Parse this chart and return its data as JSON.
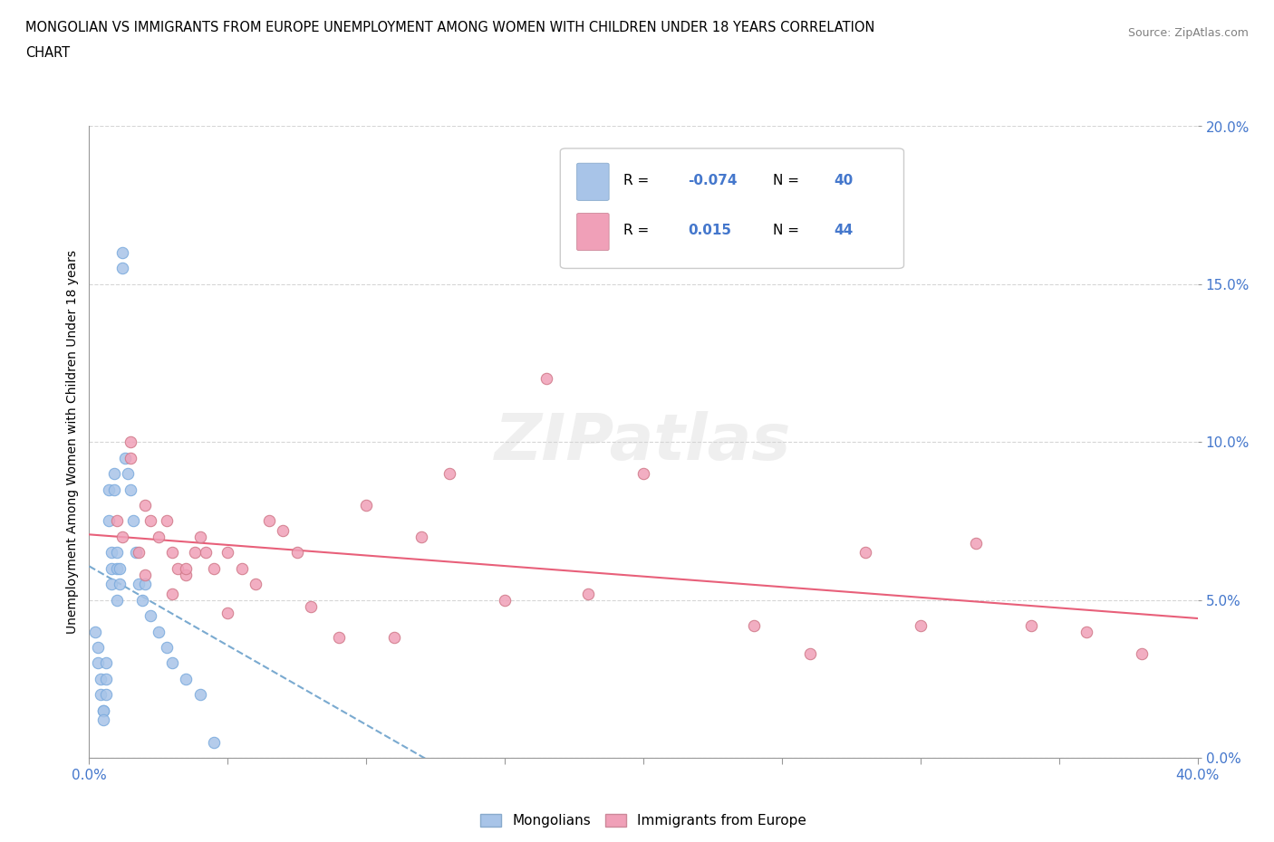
{
  "title_line1": "MONGOLIAN VS IMMIGRANTS FROM EUROPE UNEMPLOYMENT AMONG WOMEN WITH CHILDREN UNDER 18 YEARS CORRELATION",
  "title_line2": "CHART",
  "source": "Source: ZipAtlas.com",
  "ylabel_label": "Unemployment Among Women with Children Under 18 years",
  "xlim": [
    0.0,
    0.4
  ],
  "ylim": [
    0.0,
    0.2
  ],
  "xtick_positions": [
    0.0,
    0.05,
    0.1,
    0.15,
    0.2,
    0.25,
    0.3,
    0.35,
    0.4
  ],
  "ytick_positions": [
    0.0,
    0.05,
    0.1,
    0.15,
    0.2
  ],
  "watermark_text": "ZIPatlas",
  "legend_label1": "Mongolians",
  "legend_label2": "Immigrants from Europe",
  "R1": -0.074,
  "N1": 40,
  "R2": 0.015,
  "N2": 44,
  "color_mongolian": "#a8c4e8",
  "color_europe": "#f0a0b8",
  "trendline1_color": "#7aaad0",
  "trendline2_color": "#e8607a",
  "tick_color": "#4477cc",
  "mongolian_x": [
    0.002,
    0.003,
    0.003,
    0.004,
    0.004,
    0.005,
    0.005,
    0.005,
    0.006,
    0.006,
    0.006,
    0.007,
    0.007,
    0.008,
    0.008,
    0.008,
    0.009,
    0.009,
    0.01,
    0.01,
    0.01,
    0.011,
    0.011,
    0.012,
    0.012,
    0.013,
    0.014,
    0.015,
    0.016,
    0.017,
    0.018,
    0.019,
    0.02,
    0.022,
    0.025,
    0.028,
    0.03,
    0.035,
    0.04,
    0.045
  ],
  "mongolian_y": [
    0.04,
    0.035,
    0.03,
    0.025,
    0.02,
    0.015,
    0.015,
    0.012,
    0.03,
    0.025,
    0.02,
    0.075,
    0.085,
    0.065,
    0.06,
    0.055,
    0.09,
    0.085,
    0.065,
    0.06,
    0.05,
    0.06,
    0.055,
    0.155,
    0.16,
    0.095,
    0.09,
    0.085,
    0.075,
    0.065,
    0.055,
    0.05,
    0.055,
    0.045,
    0.04,
    0.035,
    0.03,
    0.025,
    0.02,
    0.005
  ],
  "europe_x": [
    0.01,
    0.012,
    0.015,
    0.015,
    0.018,
    0.02,
    0.022,
    0.025,
    0.028,
    0.03,
    0.032,
    0.035,
    0.038,
    0.04,
    0.042,
    0.045,
    0.05,
    0.055,
    0.06,
    0.065,
    0.07,
    0.075,
    0.08,
    0.09,
    0.1,
    0.11,
    0.12,
    0.13,
    0.15,
    0.165,
    0.18,
    0.2,
    0.24,
    0.26,
    0.28,
    0.3,
    0.32,
    0.34,
    0.36,
    0.38,
    0.02,
    0.03,
    0.035,
    0.05
  ],
  "europe_y": [
    0.075,
    0.07,
    0.1,
    0.095,
    0.065,
    0.08,
    0.075,
    0.07,
    0.075,
    0.065,
    0.06,
    0.058,
    0.065,
    0.07,
    0.065,
    0.06,
    0.065,
    0.06,
    0.055,
    0.075,
    0.072,
    0.065,
    0.048,
    0.038,
    0.08,
    0.038,
    0.07,
    0.09,
    0.05,
    0.12,
    0.052,
    0.09,
    0.042,
    0.033,
    0.065,
    0.042,
    0.068,
    0.042,
    0.04,
    0.033,
    0.058,
    0.052,
    0.06,
    0.046
  ]
}
